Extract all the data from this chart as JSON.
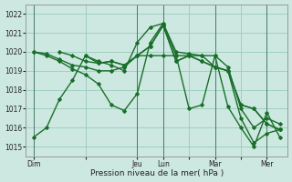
{
  "xlabel": "Pression niveau de la mer( hPa )",
  "bg_color": "#cce8e0",
  "grid_color": "#99ccbb",
  "line_color": "#1a6e2a",
  "marker": "D",
  "markersize": 2.0,
  "linewidth": 1.0,
  "ylim": [
    1014.5,
    1022.5
  ],
  "yticks": [
    1015,
    1016,
    1017,
    1018,
    1019,
    1020,
    1021,
    1022
  ],
  "x_day_labels": [
    "Dim",
    "",
    "Jeu",
    "Lun",
    "",
    "Mar",
    "",
    "Mer"
  ],
  "x_day_positions": [
    0,
    2,
    4,
    5,
    6,
    7,
    8,
    9
  ],
  "vline_positions": [
    0,
    4,
    5,
    7,
    9
  ],
  "xlim": [
    -0.3,
    9.8
  ],
  "lines": [
    {
      "x": [
        0,
        0.5,
        1,
        1.5,
        2,
        2.5,
        3,
        3.5,
        4,
        4.5,
        5,
        5.5,
        6,
        6.5,
        7,
        7.5,
        8,
        8.5,
        9,
        9.5
      ],
      "y": [
        1015.5,
        1016.0,
        1017.5,
        1018.5,
        1019.8,
        1019.5,
        1019.3,
        1019.0,
        1020.5,
        1021.3,
        1021.5,
        1020.0,
        1019.9,
        1019.8,
        1019.8,
        1019.2,
        1017.0,
        1016.0,
        1016.5,
        1016.2
      ]
    },
    {
      "x": [
        0,
        0.5,
        1,
        1.5,
        2,
        2.5,
        3,
        3.5,
        4,
        4.5,
        5,
        5.5,
        6,
        6.5,
        7,
        7.5,
        8,
        8.5,
        9,
        9.5
      ],
      "y": [
        1020.0,
        1019.9,
        1019.6,
        1019.3,
        1019.2,
        1019.0,
        1019.0,
        1019.2,
        1019.8,
        1019.8,
        1019.8,
        1019.8,
        1019.8,
        1019.8,
        1019.2,
        1019.0,
        1016.5,
        1015.2,
        1015.7,
        1015.9
      ]
    },
    {
      "x": [
        0,
        0.5,
        1,
        1.5,
        2,
        2.5,
        3,
        3.5,
        4,
        4.5,
        5,
        5.5,
        6,
        6.5,
        7,
        7.5,
        8,
        8.5,
        9,
        9.5
      ],
      "y": [
        1020.0,
        1019.8,
        1019.5,
        1019.1,
        1018.8,
        1018.3,
        1017.2,
        1016.9,
        1017.8,
        1020.5,
        1021.5,
        1019.8,
        1017.0,
        1017.2,
        1019.8,
        1017.1,
        1016.0,
        1015.0,
        1016.8,
        1015.5
      ]
    },
    {
      "x": [
        1,
        1.5,
        2,
        2.5,
        3,
        3.5,
        4,
        4.5,
        5,
        5.5,
        6,
        6.5,
        7,
        7.5,
        8,
        8.5,
        9,
        9.5
      ],
      "y": [
        1020.0,
        1019.8,
        1019.5,
        1019.4,
        1019.5,
        1019.3,
        1019.8,
        1020.3,
        1021.4,
        1019.5,
        1019.8,
        1019.5,
        1019.2,
        1019.0,
        1017.2,
        1017.0,
        1016.2,
        1015.9
      ]
    },
    {
      "x": [
        2,
        2.5,
        3,
        3.5,
        4,
        4.5,
        5,
        5.5,
        6,
        6.5,
        7,
        7.5,
        8,
        8.5,
        9,
        9.5
      ],
      "y": [
        1019.8,
        1019.4,
        1019.5,
        1019.3,
        1019.8,
        1020.3,
        1021.4,
        1019.5,
        1019.8,
        1019.5,
        1019.2,
        1019.0,
        1017.2,
        1017.0,
        1016.2,
        1015.9
      ]
    }
  ]
}
